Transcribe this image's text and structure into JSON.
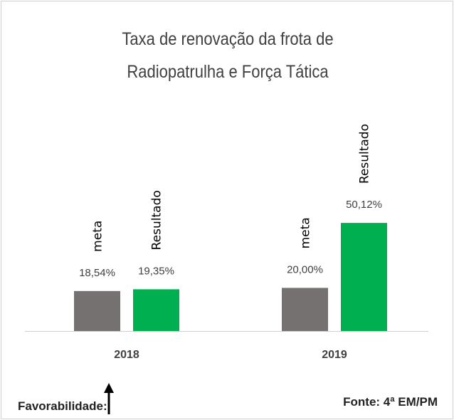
{
  "chart_data": {
    "type": "bar",
    "title": "Taxa de renovação da frota de Radiopatrulha e Força Tática",
    "categories": [
      "2018",
      "2019"
    ],
    "series": [
      {
        "name": "meta",
        "color": "#767171",
        "values": [
          18.54,
          20.0
        ],
        "value_labels": [
          "18,54%",
          "20,00%"
        ]
      },
      {
        "name": "Resultado",
        "color": "#00b050",
        "values": [
          19.35,
          50.12
        ],
        "value_labels": [
          "19,35%",
          "50,12%"
        ]
      }
    ],
    "footer_left": "Favorabilidade:",
    "source": "Fonte: 4ª EM/PM"
  }
}
